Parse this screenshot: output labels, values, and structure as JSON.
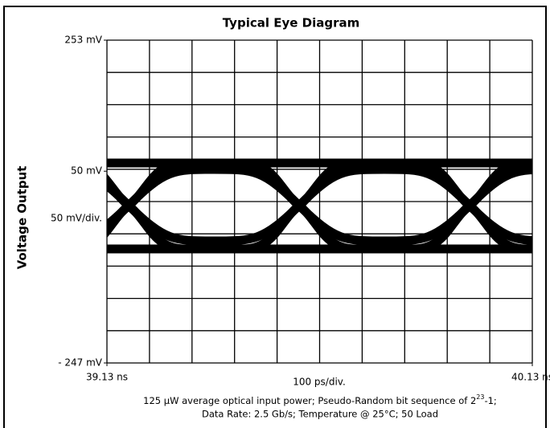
{
  "chart_data": {
    "type": "eye",
    "title": "Typical Eye Diagram",
    "ylabel": "Voltage Output",
    "ylim": [
      -247,
      253
    ],
    "yticks": [
      {
        "value": 253,
        "label": "253 mV"
      },
      {
        "value": 50,
        "label": "50 mV"
      },
      {
        "value": -247,
        "label": "- 247 mV"
      }
    ],
    "y_scale_label": "50 mV/div.",
    "xlim": [
      39.13,
      40.13
    ],
    "xticks": [
      {
        "value": 39.13,
        "label": "39.13 ns"
      },
      {
        "value": 40.13,
        "label": "40.13 ns"
      }
    ],
    "x_scale_label": "100 ps/div.",
    "caption": {
      "line1": "125 μW average optical input power; Pseudo-Random bit sequence of 2",
      "line1_sup": "23",
      "line1_end": "-1;",
      "line2": "Data Rate: 2.5 Gb/s; Temperature @ 25°C; 50  Load"
    }
  }
}
